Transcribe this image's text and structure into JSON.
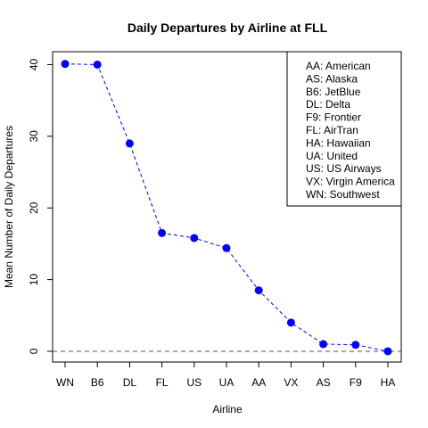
{
  "chart_data": {
    "type": "line",
    "title": "Daily Departures by Airline at FLL",
    "xlabel": "Airline",
    "ylabel": "Mean Number of Daily Departures",
    "categories": [
      "WN",
      "B6",
      "DL",
      "FL",
      "US",
      "UA",
      "AA",
      "VX",
      "AS",
      "F9",
      "HA"
    ],
    "values": [
      40.1,
      40.0,
      29.0,
      16.5,
      15.8,
      14.4,
      8.5,
      4.0,
      1.0,
      0.9,
      0.0
    ],
    "yticks": [
      0,
      10,
      20,
      30,
      40
    ],
    "ylim": [
      -1.5,
      41.8
    ],
    "reference_line": 0,
    "grid": false,
    "legend_position": "top-right",
    "legend": [
      "AA: American",
      "AS: Alaska",
      "B6: JetBlue",
      "DL: Delta",
      "F9: Frontier",
      "FL: AirTran",
      "HA: Hawaiian",
      "UA: United",
      "US: US Airways",
      "VX: Virgin America",
      "WN: Southwest"
    ],
    "colors": {
      "series": "#0000ff",
      "reference": "#555555",
      "axis": "#000000"
    }
  }
}
